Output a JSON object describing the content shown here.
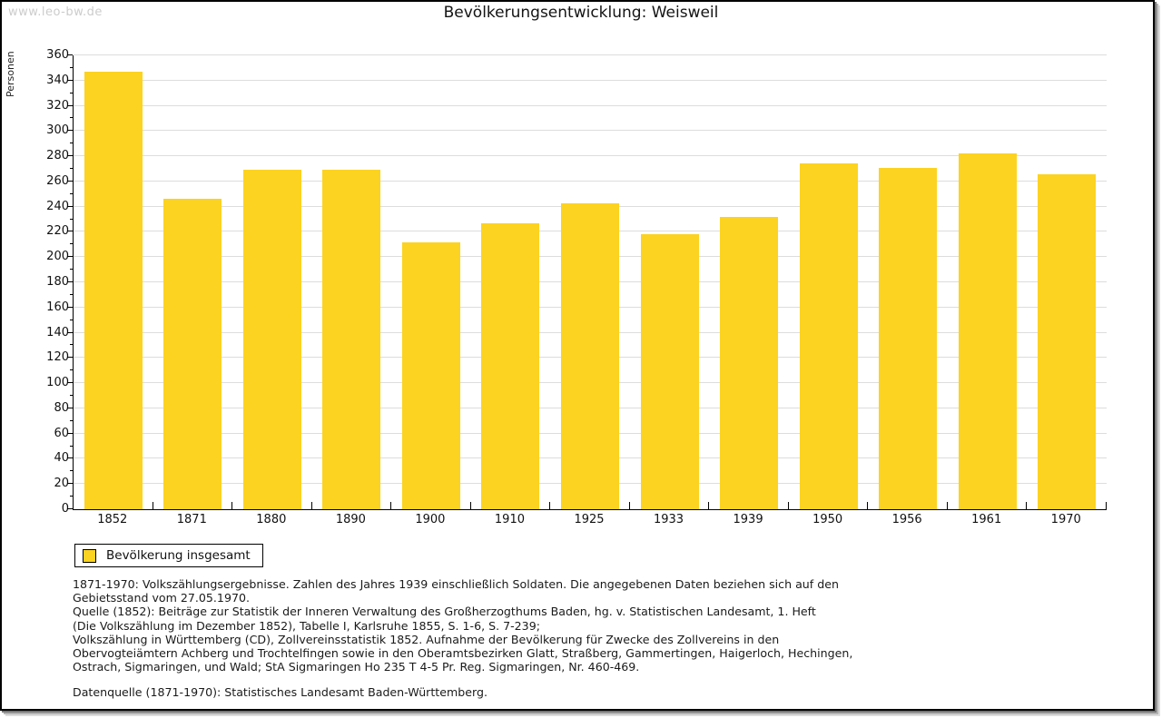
{
  "watermark": "www.leo-bw.de",
  "title": "Bevölkerungsentwicklung: Weisweil",
  "legend": {
    "label": "Bevölkerung insgesamt"
  },
  "colors": {
    "bar": "#FCD320",
    "grid": "#DDDDDD",
    "axis": "#000000",
    "watermark": "#CCCCCC"
  },
  "chart_data": {
    "type": "bar",
    "title": "Bevölkerungsentwicklung: Weisweil",
    "categories": [
      "1852",
      "1871",
      "1880",
      "1890",
      "1900",
      "1910",
      "1925",
      "1933",
      "1939",
      "1950",
      "1956",
      "1961",
      "1970"
    ],
    "values": [
      347,
      246,
      269,
      269,
      212,
      227,
      243,
      218,
      232,
      274,
      271,
      282,
      266
    ],
    "series_name": "Bevölkerung insgesamt",
    "xlabel": "",
    "ylabel": "Personen",
    "ylim": [
      0,
      360
    ],
    "ytick_step": 20,
    "ytick_minor_step": 10,
    "grid": true,
    "bar_color": "#FCD320",
    "legend_position": "bottom-left"
  },
  "footnotes": {
    "lines": [
      "1871-1970: Volkszählungsergebnisse. Zahlen des Jahres 1939 einschließlich Soldaten. Die angegebenen Daten beziehen sich auf den",
      "Gebietsstand vom 27.05.1970.",
      "Quelle (1852): Beiträge zur Statistik der Inneren Verwaltung des Großherzogthums Baden, hg. v. Statistischen Landesamt, 1. Heft",
      "(Die Volkszählung im Dezember 1852), Tabelle I, Karlsruhe 1855, S. 1-6, S. 7-239;",
      "Volkszählung in Württemberg (CD), Zollvereinsstatistik 1852. Aufnahme der Bevölkerung für Zwecke des Zollvereins in den",
      "Obervogteiämtern Achberg und Trochtelfingen sowie in den Oberamtsbezirken Glatt, Straßberg, Gammertingen, Haigerloch, Hechingen,",
      "Ostrach, Sigmaringen, und Wald; StA Sigmaringen Ho 235 T 4-5 Pr. Reg. Sigmaringen, Nr. 460-469."
    ],
    "datasource": "Datenquelle (1871-1970): Statistisches Landesamt Baden-Württemberg."
  }
}
